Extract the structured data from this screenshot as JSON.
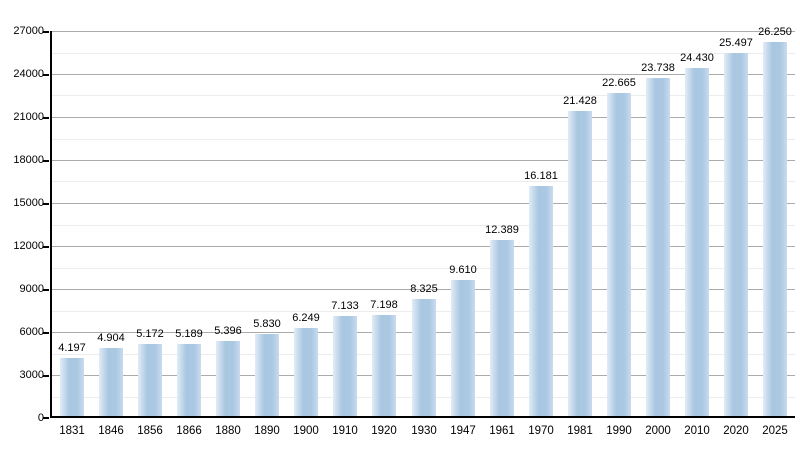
{
  "chart_data": {
    "type": "bar",
    "title": "",
    "xlabel": "",
    "ylabel": "",
    "categories": [
      "1831",
      "1846",
      "1856",
      "1866",
      "1880",
      "1890",
      "1900",
      "1910",
      "1920",
      "1930",
      "1947",
      "1961",
      "1970",
      "1981",
      "1990",
      "2000",
      "2010",
      "2020",
      "2025"
    ],
    "values": [
      4197,
      4904,
      5172,
      5189,
      5396,
      5830,
      6249,
      7133,
      7198,
      8325,
      9610,
      12389,
      16181,
      21428,
      22665,
      23738,
      24430,
      25497,
      26250
    ],
    "value_labels": [
      "4.197",
      "4.904",
      "5.172",
      "5.189",
      "5.396",
      "5.830",
      "6.249",
      "7.133",
      "7.198",
      "8.325",
      "9.610",
      "12.389",
      "16.181",
      "21.428",
      "22.665",
      "23.738",
      "24.430",
      "25.497",
      "26.250"
    ],
    "ylim": [
      0,
      27000
    ],
    "y_major_step": 3000,
    "y_minor_step": 1500,
    "y_tick_labels": [
      "0",
      "3000",
      "6000",
      "9000",
      "12000",
      "15000",
      "18000",
      "21000",
      "24000",
      "27000"
    ],
    "grid": "on",
    "legend": "none",
    "colors": {
      "bar_fill": "#abc8e3",
      "bar_fill_edge_light": "#e2ecf6",
      "gridline_major": "#ababab",
      "gridline_minor": "#ececec",
      "axis": "#000000",
      "text": "#000000",
      "background": "#ffffff"
    }
  }
}
